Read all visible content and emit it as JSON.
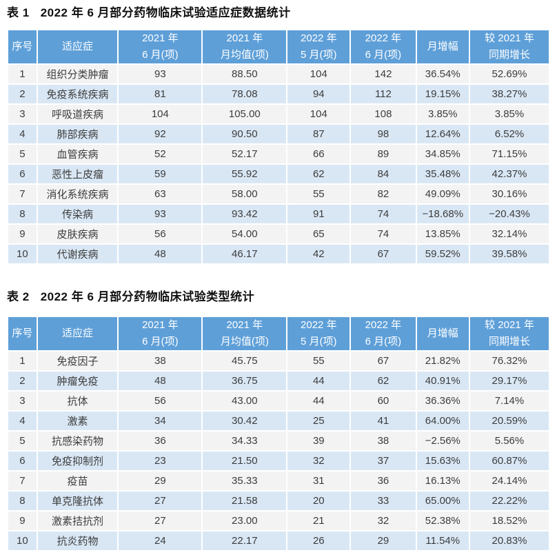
{
  "colors": {
    "header_bg": "#5E9FD8",
    "header_text": "#FFFFFF",
    "row_odd_bg": "#F3F3F3",
    "row_even_bg": "#D9E7F5",
    "body_text": "#3C3C3C",
    "title_text": "#111111",
    "page_bg": "#FFFFFF"
  },
  "tables": [
    {
      "label": "表 1",
      "title": "2022 年 6 月部分药物临床试验适应症数据统计",
      "columns": [
        [
          "序号"
        ],
        [
          "适应症"
        ],
        [
          "2021 年",
          "6 月(项)"
        ],
        [
          "2021 年",
          "月均值(项)"
        ],
        [
          "2022 年",
          "5 月(项)"
        ],
        [
          "2022 年",
          "6 月(项)"
        ],
        [
          "月增幅"
        ],
        [
          "较 2021 年",
          "同期增长"
        ]
      ],
      "rows": [
        [
          "1",
          "组织分类肿瘤",
          "93",
          "88.50",
          "104",
          "142",
          "36.54%",
          "52.69%"
        ],
        [
          "2",
          "免疫系统疾病",
          "81",
          "78.08",
          "94",
          "112",
          "19.15%",
          "38.27%"
        ],
        [
          "3",
          "呼吸道疾病",
          "104",
          "105.00",
          "104",
          "108",
          "3.85%",
          "3.85%"
        ],
        [
          "4",
          "肺部疾病",
          "92",
          "90.50",
          "87",
          "98",
          "12.64%",
          "6.52%"
        ],
        [
          "5",
          "血管疾病",
          "52",
          "52.17",
          "66",
          "89",
          "34.85%",
          "71.15%"
        ],
        [
          "6",
          "恶性上皮瘤",
          "59",
          "55.92",
          "62",
          "84",
          "35.48%",
          "42.37%"
        ],
        [
          "7",
          "消化系统疾病",
          "63",
          "58.00",
          "55",
          "82",
          "49.09%",
          "30.16%"
        ],
        [
          "8",
          "传染病",
          "93",
          "93.42",
          "91",
          "74",
          "−18.68%",
          "−20.43%"
        ],
        [
          "9",
          "皮肤疾病",
          "56",
          "54.00",
          "65",
          "74",
          "13.85%",
          "32.14%"
        ],
        [
          "10",
          "代谢疾病",
          "48",
          "46.17",
          "42",
          "67",
          "59.52%",
          "39.58%"
        ]
      ]
    },
    {
      "label": "表 2",
      "title": "2022 年 6 月部分药物临床试验类型统计",
      "columns": [
        [
          "序号"
        ],
        [
          "适应症"
        ],
        [
          "2021 年",
          "6 月(项)"
        ],
        [
          "2021 年",
          "月均值(项)"
        ],
        [
          "2022 年",
          "5 月(项)"
        ],
        [
          "2022 年",
          "6 月(项)"
        ],
        [
          "月增幅"
        ],
        [
          "较 2021 年",
          "同期增长"
        ]
      ],
      "rows": [
        [
          "1",
          "免疫因子",
          "38",
          "45.75",
          "55",
          "67",
          "21.82%",
          "76.32%"
        ],
        [
          "2",
          "肿瘤免疫",
          "48",
          "36.75",
          "44",
          "62",
          "40.91%",
          "29.17%"
        ],
        [
          "3",
          "抗体",
          "56",
          "43.00",
          "44",
          "60",
          "36.36%",
          "7.14%"
        ],
        [
          "4",
          "激素",
          "34",
          "30.42",
          "25",
          "41",
          "64.00%",
          "20.59%"
        ],
        [
          "5",
          "抗感染药物",
          "36",
          "34.33",
          "39",
          "38",
          "−2.56%",
          "5.56%"
        ],
        [
          "6",
          "免疫抑制剂",
          "23",
          "21.50",
          "32",
          "37",
          "15.63%",
          "60.87%"
        ],
        [
          "7",
          "疫苗",
          "29",
          "35.33",
          "31",
          "36",
          "16.13%",
          "24.14%"
        ],
        [
          "8",
          "单克隆抗体",
          "27",
          "21.58",
          "20",
          "33",
          "65.00%",
          "22.22%"
        ],
        [
          "9",
          "激素拮抗剂",
          "27",
          "23.00",
          "21",
          "32",
          "52.38%",
          "18.52%"
        ],
        [
          "10",
          "抗炎药物",
          "24",
          "22.17",
          "26",
          "29",
          "11.54%",
          "20.83%"
        ]
      ]
    }
  ]
}
